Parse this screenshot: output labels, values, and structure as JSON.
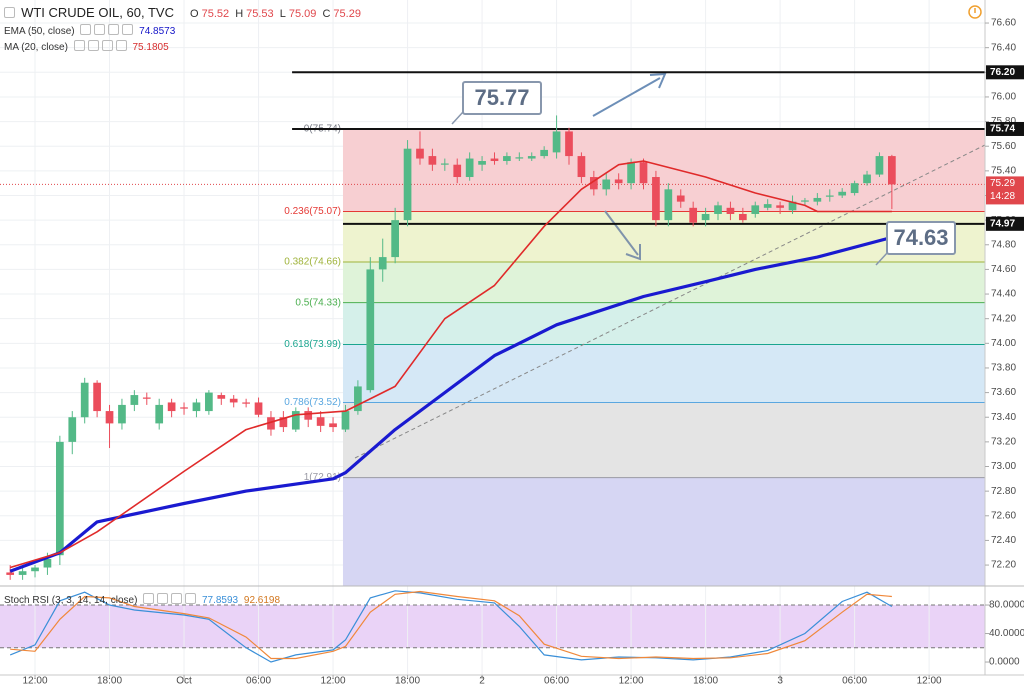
{
  "chart_data": {
    "type": "candlestick",
    "title": "WTI CRUDE OIL, 60, TVC",
    "ohlc_legend": [
      {
        "label": "O",
        "value": 75.52
      },
      {
        "label": "H",
        "value": 75.53
      },
      {
        "label": "L",
        "value": 75.09
      },
      {
        "label": "C",
        "value": 75.29
      }
    ],
    "countdown": "14:28",
    "up_color": "#53b987",
    "down_color": "#eb4d5c",
    "ylim": [
      72.03,
      76.787
    ],
    "yticks": [
      {
        "value": 72.2,
        "label": "72.20"
      },
      {
        "value": 72.4,
        "label": "72.40"
      },
      {
        "value": 72.6,
        "label": "72.60"
      },
      {
        "value": 72.8,
        "label": "72.80"
      },
      {
        "value": 73.0,
        "label": "73.00"
      },
      {
        "value": 73.2,
        "label": "73.20"
      },
      {
        "value": 73.4,
        "label": "73.40"
      },
      {
        "value": 73.6,
        "label": "73.60"
      },
      {
        "value": 73.8,
        "label": "73.80"
      },
      {
        "value": 74.0,
        "label": "74.00"
      },
      {
        "value": 74.2,
        "label": "74.20"
      },
      {
        "value": 74.4,
        "label": "74.40"
      },
      {
        "value": 74.6,
        "label": "74.60"
      },
      {
        "value": 74.8,
        "label": "74.80"
      },
      {
        "value": 75.0,
        "label": "75.00"
      },
      {
        "value": 75.2,
        "label": "75.20"
      },
      {
        "value": 75.4,
        "label": "75.40"
      },
      {
        "value": 75.6,
        "label": "75.60"
      },
      {
        "value": 75.8,
        "label": "75.80"
      },
      {
        "value": 76.0,
        "label": "76.00"
      },
      {
        "value": 76.2,
        "label": "76.20"
      },
      {
        "value": 76.4,
        "label": "76.40"
      },
      {
        "value": 76.6,
        "label": "76.60"
      }
    ],
    "xlim": [
      -2.82,
      76.5
    ],
    "xticks": [
      {
        "value": 0,
        "label": "12:00"
      },
      {
        "value": 6,
        "label": "18:00"
      },
      {
        "value": 12,
        "label": "Oct"
      },
      {
        "value": 18,
        "label": "06:00"
      },
      {
        "value": 24,
        "label": "12:00"
      },
      {
        "value": 30,
        "label": "18:00"
      },
      {
        "value": 36,
        "label": "2"
      },
      {
        "value": 42,
        "label": "06:00"
      },
      {
        "value": 48,
        "label": "12:00"
      },
      {
        "value": 54,
        "label": "18:00"
      },
      {
        "value": 60,
        "label": "3"
      },
      {
        "value": 66,
        "label": "06:00"
      },
      {
        "value": 72,
        "label": "12:00"
      }
    ],
    "grid": true,
    "x": [
      -2,
      -1,
      0,
      1,
      2,
      3,
      4,
      5,
      6,
      7,
      8,
      9,
      10,
      11,
      12,
      13,
      14,
      15,
      16,
      17,
      18,
      19,
      20,
      21,
      22,
      23,
      24,
      25,
      26,
      27,
      28,
      29,
      30,
      31,
      32,
      33,
      34,
      35,
      36,
      37,
      38,
      39,
      40,
      41,
      42,
      43,
      44,
      45,
      46,
      47,
      48,
      49,
      50,
      51,
      52,
      53,
      54,
      55,
      56,
      57,
      58,
      59,
      60,
      61,
      62,
      63,
      64,
      65,
      66,
      67,
      68,
      69
    ],
    "open": [
      72.14,
      72.12,
      72.15,
      72.18,
      72.28,
      73.2,
      73.4,
      73.68,
      73.45,
      73.35,
      73.5,
      73.56,
      73.35,
      73.52,
      73.48,
      73.45,
      73.45,
      73.58,
      73.55,
      73.52,
      73.52,
      73.4,
      73.4,
      73.3,
      73.45,
      73.4,
      73.35,
      73.3,
      73.45,
      73.62,
      74.6,
      74.7,
      75.0,
      75.58,
      75.52,
      75.45,
      75.45,
      75.35,
      75.45,
      75.5,
      75.48,
      75.5,
      75.5,
      75.52,
      75.55,
      75.72,
      75.52,
      75.35,
      75.25,
      75.33,
      75.3,
      75.47,
      75.35,
      75.0,
      75.2,
      75.1,
      75.0,
      75.05,
      75.1,
      75.05,
      75.05,
      75.1,
      75.12,
      75.08,
      75.15,
      75.15,
      75.19,
      75.2,
      75.22,
      75.3,
      75.37,
      75.52
    ],
    "high": [
      72.2,
      72.18,
      72.2,
      72.3,
      73.25,
      73.45,
      73.72,
      73.7,
      73.5,
      73.55,
      73.62,
      73.6,
      73.55,
      73.55,
      73.52,
      73.55,
      73.62,
      73.6,
      73.58,
      73.55,
      73.56,
      73.45,
      73.45,
      73.48,
      73.48,
      73.45,
      73.4,
      73.5,
      73.7,
      74.7,
      74.85,
      75.1,
      75.65,
      75.72,
      75.58,
      75.5,
      75.5,
      75.55,
      75.52,
      75.55,
      75.55,
      75.55,
      75.55,
      75.6,
      75.85,
      75.75,
      75.55,
      75.4,
      75.38,
      75.38,
      75.5,
      75.5,
      75.4,
      75.3,
      75.25,
      75.15,
      75.1,
      75.15,
      75.15,
      75.1,
      75.15,
      75.17,
      75.15,
      75.2,
      75.18,
      75.22,
      75.25,
      75.26,
      75.32,
      75.4,
      75.55,
      75.53
    ],
    "low": [
      72.08,
      72.08,
      72.1,
      72.12,
      72.2,
      73.1,
      73.35,
      73.4,
      73.15,
      73.3,
      73.45,
      73.5,
      73.3,
      73.4,
      73.42,
      73.4,
      73.42,
      73.5,
      73.48,
      73.48,
      73.4,
      73.25,
      73.28,
      73.28,
      73.32,
      73.28,
      73.28,
      73.28,
      73.42,
      73.6,
      74.5,
      74.65,
      74.95,
      75.45,
      75.4,
      75.4,
      75.3,
      75.32,
      75.4,
      75.45,
      75.45,
      75.48,
      75.48,
      75.5,
      75.5,
      75.45,
      75.3,
      75.2,
      75.2,
      75.25,
      75.25,
      75.25,
      74.95,
      74.95,
      75.1,
      74.95,
      74.95,
      75.0,
      75.0,
      74.98,
      75.02,
      75.08,
      75.05,
      75.05,
      75.12,
      75.12,
      75.15,
      75.18,
      75.2,
      75.28,
      75.35,
      75.09
    ],
    "close": [
      72.12,
      72.15,
      72.18,
      72.25,
      73.2,
      73.4,
      73.68,
      73.45,
      73.35,
      73.5,
      73.58,
      73.55,
      73.5,
      73.45,
      73.47,
      73.52,
      73.6,
      73.55,
      73.52,
      73.51,
      73.42,
      73.3,
      73.32,
      73.45,
      73.38,
      73.33,
      73.32,
      73.45,
      73.65,
      74.6,
      74.7,
      75.0,
      75.58,
      75.5,
      75.45,
      75.46,
      75.35,
      75.5,
      75.48,
      75.48,
      75.52,
      75.51,
      75.52,
      75.57,
      75.72,
      75.52,
      75.35,
      75.25,
      75.33,
      75.3,
      75.47,
      75.3,
      75.0,
      75.25,
      75.15,
      74.98,
      75.05,
      75.12,
      75.05,
      75.0,
      75.12,
      75.13,
      75.1,
      75.15,
      75.16,
      75.18,
      75.2,
      75.23,
      75.3,
      75.37,
      75.52,
      75.29
    ],
    "overlays": [
      {
        "name": "EMA (50, close)",
        "value": 74.8573,
        "color": "#1a1ad0",
        "width": 3.2,
        "x": [
          -2,
          2,
          5,
          12,
          17,
          24,
          25,
          29,
          33,
          37,
          42,
          49,
          54,
          58,
          63,
          69
        ],
        "values": [
          72.15,
          72.3,
          72.55,
          72.7,
          72.8,
          72.9,
          72.95,
          73.3,
          73.6,
          73.9,
          74.15,
          74.38,
          74.5,
          74.6,
          74.7,
          74.86
        ]
      },
      {
        "name": "MA (20, close)",
        "value": 75.1805,
        "color": "#e02a2a",
        "width": 1.6,
        "x": [
          -2,
          2,
          5,
          12,
          17,
          21,
          25,
          29,
          33,
          37,
          41,
          44,
          47,
          49,
          54,
          58,
          62,
          63,
          69
        ],
        "values": [
          72.18,
          72.3,
          72.47,
          72.96,
          73.3,
          73.42,
          73.45,
          73.65,
          74.2,
          74.47,
          74.95,
          75.25,
          75.45,
          75.48,
          75.35,
          75.22,
          75.12,
          75.07,
          75.07
        ]
      }
    ],
    "fib_levels": [
      {
        "label": "0(75.74)",
        "value": 75.74,
        "color": "#787b86",
        "fill": "#f7cfd2"
      },
      {
        "label": "0.236(75.07)",
        "value": 75.07,
        "color": "#e53935",
        "fill": "#eef3cf"
      },
      {
        "label": "0.382(74.66)",
        "value": 74.66,
        "color": "#9fb33a",
        "fill": "#dff3d9"
      },
      {
        "label": "0.5(74.33)",
        "value": 74.33,
        "color": "#4caf50",
        "fill": "#d5f0ea"
      },
      {
        "label": "0.618(73.99)",
        "value": 73.99,
        "color": "#1aa58f",
        "fill": "#d5e8f6"
      },
      {
        "label": "0.786(73.52)",
        "value": 73.52,
        "color": "#5aa7e0",
        "fill": "#e4e4e4"
      },
      {
        "label": "1(72.91)",
        "value": 72.91,
        "color": "#9a9aa5",
        "fill": "#d6d6f3"
      }
    ],
    "hlines": [
      {
        "value": 76.2,
        "label": "76.20"
      },
      {
        "value": 75.74,
        "label": "75.74"
      },
      {
        "value": 74.97,
        "label": "74.97"
      }
    ],
    "annotations": [
      "75.77",
      "74.63"
    ],
    "stoch": {
      "name": "Stoch RSI (3, 3, 14, 14, close)",
      "ylim": [
        -18.2,
        105.3
      ],
      "yticks": [
        {
          "value": 0,
          "label": "0.0000"
        },
        {
          "value": 40,
          "label": "40.0000"
        },
        {
          "value": 80,
          "label": "80.0000"
        }
      ],
      "bands": [
        20,
        80
      ],
      "x": [
        -2,
        0,
        2,
        4,
        6,
        8,
        12,
        14,
        17,
        19,
        21,
        24,
        25,
        27,
        29,
        31,
        34,
        37,
        39,
        41,
        44,
        47,
        50,
        53,
        56,
        59,
        62,
        65,
        67,
        69
      ],
      "series": [
        {
          "color": "#3a8fd8",
          "last": 77.8593,
          "values": [
            10,
            24,
            86,
            98,
            80,
            73,
            66,
            60,
            20,
            0,
            10,
            17,
            31,
            90,
            100,
            97,
            88,
            83,
            50,
            10,
            3,
            7,
            6,
            3,
            7,
            16,
            40,
            85,
            98,
            78
          ]
        },
        {
          "color": "#f0883a",
          "last": 92.6198,
          "values": [
            18,
            15,
            60,
            92,
            90,
            78,
            68,
            62,
            35,
            5,
            5,
            15,
            22,
            70,
            95,
            99,
            92,
            86,
            65,
            25,
            8,
            5,
            7,
            5,
            6,
            12,
            30,
            70,
            95,
            92
          ]
        }
      ]
    }
  }
}
